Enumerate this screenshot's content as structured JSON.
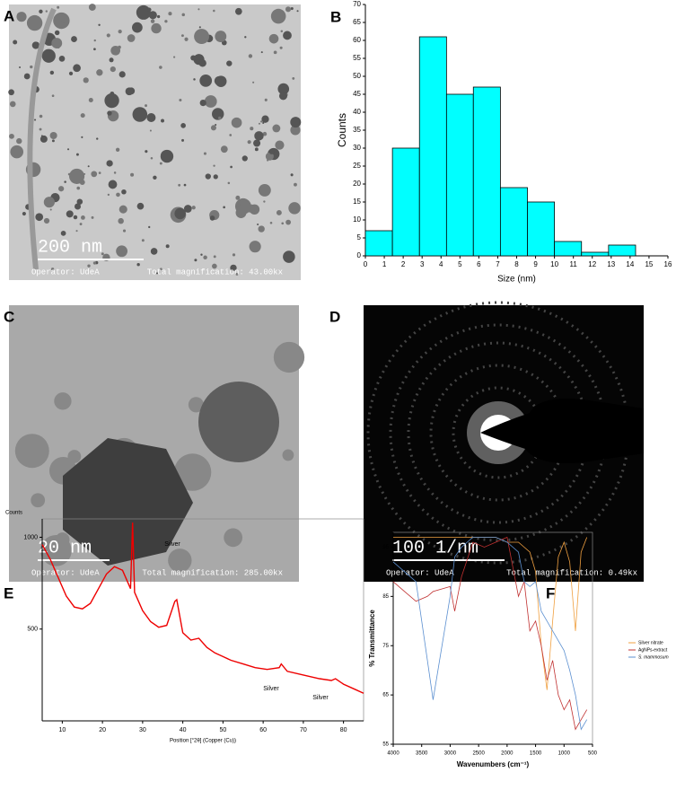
{
  "figure": {
    "panel_a": {
      "label": "A",
      "scale_bar": "200 nm",
      "operator": "Operator: UdeA",
      "magnification": "Total magnification: 43.00kx"
    },
    "panel_c": {
      "label": "C",
      "scale_bar": "20 nm",
      "operator": "Operator: UdeA",
      "magnification": "Total magnification: 285.00kx"
    },
    "panel_d": {
      "label": "D",
      "scale_bar": "100 1/nm",
      "operator": "Operator: UdeA",
      "magnification": "Total magnification: 0.49kx"
    }
  },
  "chart_data": [
    {
      "panel": "B",
      "type": "histogram",
      "bins": [
        0,
        1.43,
        2.86,
        4.29,
        5.71,
        7.14,
        8.57,
        10,
        11.43,
        12.86,
        14.29
      ],
      "counts": [
        7,
        30,
        61,
        45,
        47,
        19,
        15,
        4,
        1,
        3
      ],
      "color": "#00ffff",
      "xlabel": "Size (nm)",
      "ylabel": "Counts",
      "xlim": [
        0,
        16
      ],
      "xticks": [
        0,
        1,
        2,
        3,
        4,
        5,
        6,
        7,
        8,
        9,
        10,
        11,
        12,
        13,
        14,
        15,
        16
      ],
      "ylim": [
        0,
        70
      ],
      "yticks": [
        0,
        5,
        10,
        15,
        20,
        25,
        30,
        35,
        40,
        45,
        50,
        55,
        60,
        65,
        70
      ]
    },
    {
      "panel": "E",
      "type": "line",
      "x": [
        5,
        7,
        9,
        11,
        13,
        15,
        17,
        19,
        21,
        23,
        25,
        27,
        27.5,
        28,
        30,
        32,
        34,
        36,
        38,
        38.5,
        40,
        42,
        44,
        46,
        48,
        50,
        52,
        55,
        58,
        61,
        64,
        64.5,
        66,
        70,
        74,
        77,
        78,
        80,
        83,
        85
      ],
      "series": [
        {
          "color": "#ee0000",
          "values": [
            960,
            880,
            780,
            680,
            620,
            610,
            640,
            720,
            800,
            840,
            820,
            720,
            1080,
            700,
            600,
            540,
            510,
            520,
            650,
            660,
            480,
            440,
            450,
            400,
            370,
            350,
            330,
            310,
            290,
            280,
            290,
            310,
            270,
            250,
            230,
            220,
            230,
            200,
            170,
            150
          ]
        }
      ],
      "xlabel": "Position [°2θ] (Copper (Cu))",
      "ylabel": "Counts",
      "annotations": [
        "Silver",
        "Silver",
        "Silver"
      ],
      "xlim": [
        5,
        85
      ],
      "xticks": [
        10,
        20,
        30,
        40,
        50,
        60,
        70,
        80
      ],
      "ylim": [
        0,
        1100
      ],
      "yticks": [
        500,
        1000
      ]
    },
    {
      "panel": "F",
      "type": "line",
      "x": [
        4000,
        3800,
        3600,
        3400,
        3300,
        3000,
        2920,
        2800,
        2600,
        2400,
        2200,
        2000,
        1800,
        1700,
        1600,
        1500,
        1400,
        1300,
        1200,
        1100,
        1000,
        900,
        800,
        700,
        600
      ],
      "series": [
        {
          "name": "Silver nitrate",
          "color": "#f0a040",
          "values": [
            97,
            97,
            97,
            97,
            97,
            97,
            97,
            97,
            97,
            97,
            97,
            96,
            96,
            95,
            94,
            90,
            75,
            66,
            80,
            93,
            96,
            92,
            78,
            94,
            97
          ]
        },
        {
          "name": "AgNPs-extract",
          "color": "#c03030",
          "values": [
            88,
            86,
            84,
            85,
            86,
            87,
            82,
            89,
            96,
            95,
            96,
            97,
            85,
            88,
            78,
            80,
            75,
            68,
            72,
            65,
            62,
            64,
            58,
            60,
            62
          ]
        },
        {
          "name": "S. mammosum",
          "color": "#5b8fd0",
          "values": [
            92,
            90,
            88,
            72,
            64,
            85,
            93,
            95,
            97,
            97,
            97,
            96,
            94,
            88,
            87,
            88,
            82,
            80,
            78,
            76,
            74,
            70,
            65,
            58,
            60
          ]
        }
      ],
      "xlabel": "Wavenumbers (cm⁻¹)",
      "ylabel": "% Transmittance",
      "xlim": [
        4000,
        500
      ],
      "xticks": [
        4000,
        3500,
        3000,
        2500,
        2000,
        1500,
        1000,
        500
      ],
      "ylim": [
        55,
        98
      ],
      "yticks": [
        55,
        65,
        75,
        85,
        95
      ]
    }
  ]
}
